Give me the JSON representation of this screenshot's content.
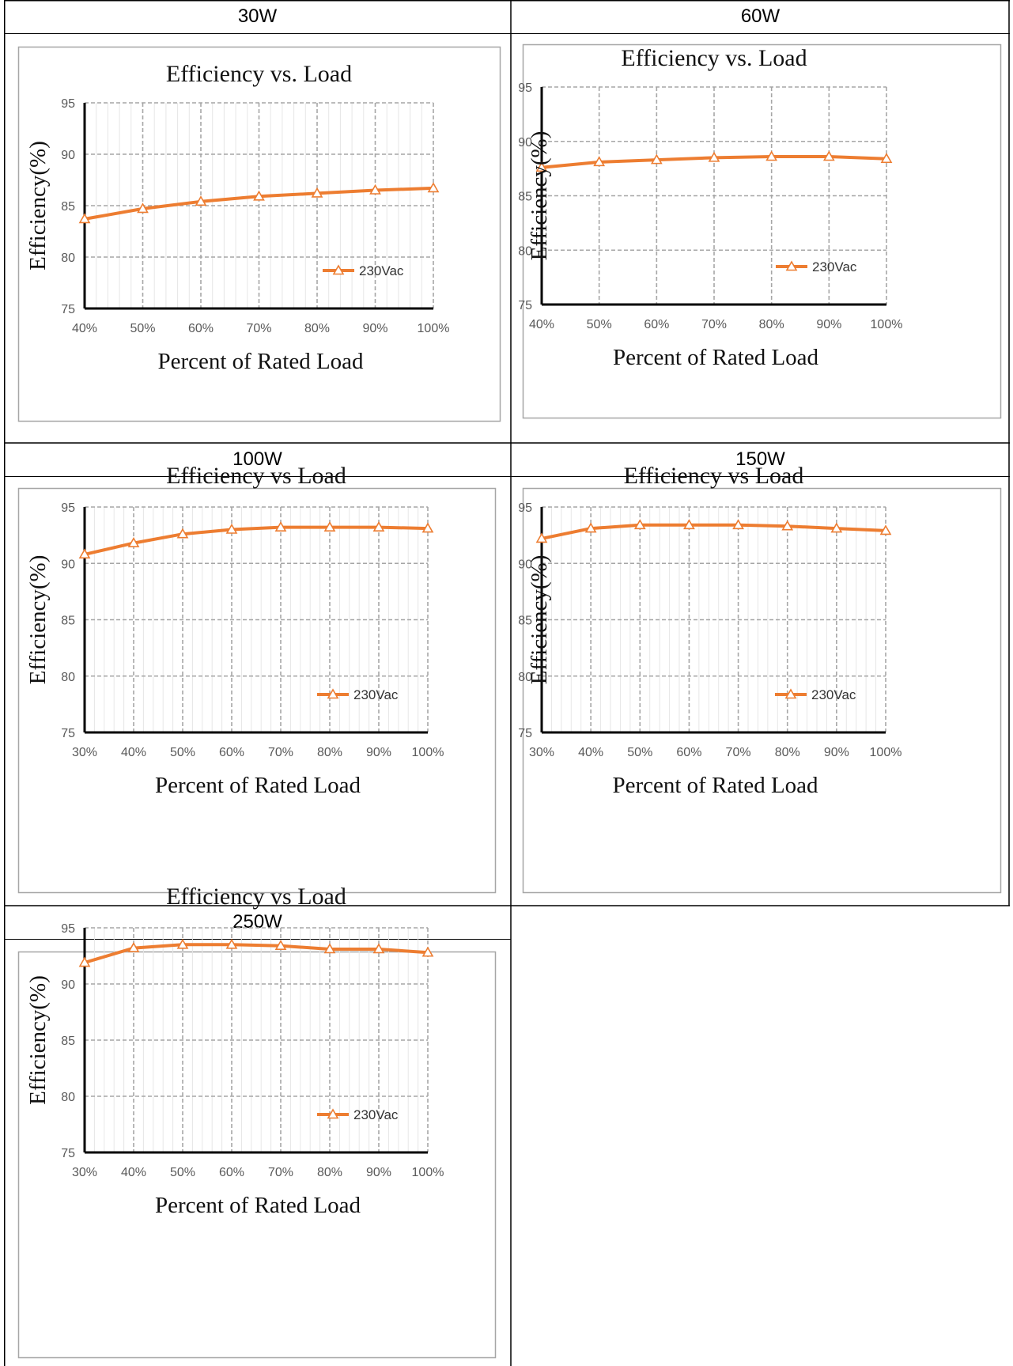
{
  "table": {
    "cells": [
      {
        "header": "30W"
      },
      {
        "header": "60W"
      },
      {
        "header": "100W"
      },
      {
        "header": "150W"
      },
      {
        "header": "250W"
      }
    ]
  },
  "colors": {
    "series": "#ED7D31",
    "grid": "#A6A6A6",
    "axis": "#000000",
    "border": "#000000",
    "panel": "#A6A6A6"
  },
  "chart_data": [
    {
      "type": "line",
      "title": "Efficiency vs. Load",
      "xlabel": "Percent of Rated Load",
      "ylabel": "Efficiency(%)",
      "categories": [
        "40%",
        "50%",
        "60%",
        "70%",
        "80%",
        "90%",
        "100%"
      ],
      "ylim": [
        75,
        95
      ],
      "yticks": [
        75,
        80,
        85,
        90,
        95
      ],
      "grid": true,
      "legend": "bottom-right",
      "series": [
        {
          "name": "230Vac",
          "values": [
            83.7,
            84.7,
            85.4,
            85.9,
            86.2,
            86.5,
            86.7
          ]
        }
      ]
    },
    {
      "type": "line",
      "title": "Efficiency vs. Load",
      "xlabel": "Percent of Rated Load",
      "ylabel": "Efficiency(%)",
      "categories": [
        "40%",
        "50%",
        "60%",
        "70%",
        "80%",
        "90%",
        "100%"
      ],
      "ylim": [
        75,
        95
      ],
      "yticks": [
        75,
        80,
        85,
        90,
        95
      ],
      "grid": true,
      "legend": "bottom-right",
      "series": [
        {
          "name": "230Vac",
          "values": [
            87.6,
            88.1,
            88.3,
            88.5,
            88.6,
            88.6,
            88.4
          ]
        }
      ]
    },
    {
      "type": "line",
      "title": "Efficiency vs Load",
      "xlabel": "Percent of Rated Load",
      "ylabel": "Efficiency(%)",
      "categories": [
        "30%",
        "40%",
        "50%",
        "60%",
        "70%",
        "80%",
        "90%",
        "100%"
      ],
      "ylim": [
        75,
        95
      ],
      "yticks": [
        75,
        80,
        85,
        90,
        95
      ],
      "grid": true,
      "legend": "bottom-right",
      "series": [
        {
          "name": "230Vac",
          "values": [
            90.8,
            91.8,
            92.6,
            93.0,
            93.2,
            93.2,
            93.2,
            93.1
          ]
        }
      ]
    },
    {
      "type": "line",
      "title": "Efficiency vs Load",
      "xlabel": "Percent of Rated Load",
      "ylabel": "Efficiency(%)",
      "categories": [
        "30%",
        "40%",
        "50%",
        "60%",
        "70%",
        "80%",
        "90%",
        "100%"
      ],
      "ylim": [
        75,
        95
      ],
      "yticks": [
        75,
        80,
        85,
        90,
        95
      ],
      "grid": true,
      "legend": "bottom-right",
      "series": [
        {
          "name": "230Vac",
          "values": [
            92.2,
            93.1,
            93.4,
            93.4,
            93.4,
            93.3,
            93.1,
            92.9
          ]
        }
      ]
    },
    {
      "type": "line",
      "title": "Efficiency vs Load",
      "xlabel": "Percent of Rated Load",
      "ylabel": "Efficiency(%)",
      "categories": [
        "30%",
        "40%",
        "50%",
        "60%",
        "70%",
        "80%",
        "90%",
        "100%"
      ],
      "ylim": [
        75,
        95
      ],
      "yticks": [
        75,
        80,
        85,
        90,
        95
      ],
      "grid": true,
      "legend": "bottom-right",
      "series": [
        {
          "name": "230Vac",
          "values": [
            91.9,
            93.2,
            93.5,
            93.5,
            93.4,
            93.1,
            93.1,
            92.8
          ]
        }
      ]
    }
  ]
}
